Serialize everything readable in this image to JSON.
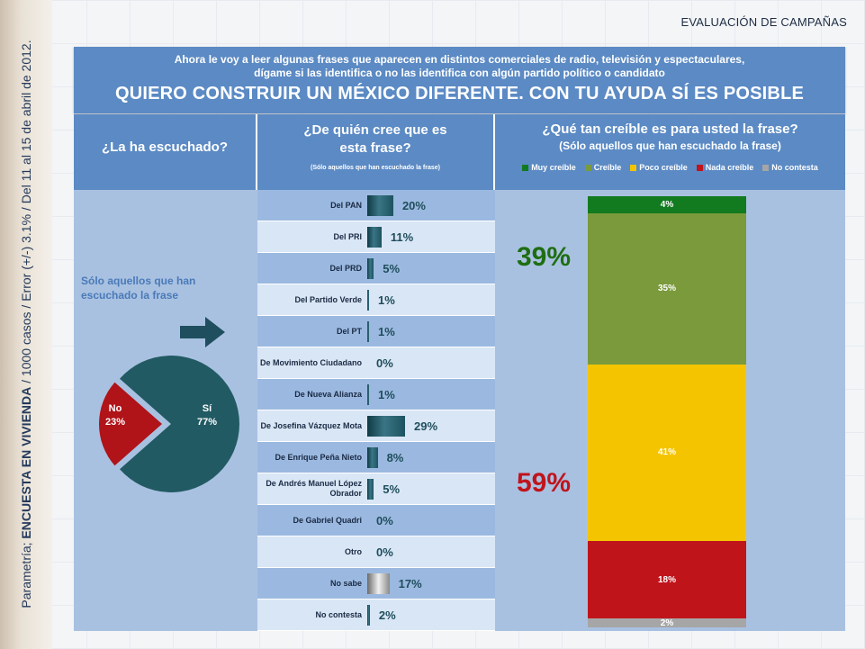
{
  "side_text": {
    "prefix": "Parametría; ",
    "bold": "ENCUESTA EN VIVIENDA",
    "rest": " / 1000 casos / Error (+/-) 3.1% / Del 11 al 15 de abril de 2012."
  },
  "top_label": "EVALUACIÓN DE CAMPAÑAS",
  "header": {
    "q1": "Ahora le voy a leer algunas frases que aparecen en distintos comerciales de radio, televisión y espectaculares,",
    "q2": "dígame si las identifica o no las identifica con algún partido político o candidato",
    "title": "QUIERO CONSTRUIR UN MÉXICO DIFERENTE. CON TU AYUDA SÍ ES POSIBLE"
  },
  "col1": {
    "title": "¿La ha escuchado?",
    "note": "Sólo aquellos que han escuchado la frase"
  },
  "col2": {
    "title": "¿De quién cree que es esta frase?",
    "subtitle": "(Sólo aquellos que han escuchado la frase)"
  },
  "col3": {
    "title": "¿Qué tan creíble es para usted la frase?",
    "subtitle": "(Sólo aquellos que han escuchado la frase)"
  },
  "colors": {
    "muy_creible": "#127a1f",
    "creible": "#7a9a3c",
    "poco_creible": "#f5c400",
    "nada_creible": "#c0141b",
    "no_contesta": "#a6a6a6",
    "pie_si": "#215a63",
    "pie_no": "#b01318",
    "big_green": "#1e6e12",
    "big_red": "#c0141b"
  },
  "chart_data": [
    {
      "type": "pie",
      "slices": [
        {
          "label": "Sí",
          "value": 77,
          "display": "77%"
        },
        {
          "label": "No",
          "value": 23,
          "display": "23%"
        }
      ]
    },
    {
      "type": "bar",
      "orientation": "horizontal",
      "categories": [
        "Del PAN",
        "Del PRI",
        "Del PRD",
        "Del Partido Verde",
        "Del PT",
        "De Movimiento Ciudadano",
        "De Nueva Alianza",
        "De Josefina Vázquez Mota",
        "De Enrique Peña Nieto",
        "De Andrés Manuel López Obrador",
        "De Gabriel Quadri",
        "Otro",
        "No sabe",
        "No contesta"
      ],
      "values": [
        20,
        11,
        5,
        1,
        1,
        0,
        1,
        29,
        8,
        5,
        0,
        0,
        17,
        2
      ],
      "labels": [
        "20%",
        "11%",
        "5%",
        "1%",
        "1%",
        "0%",
        "1%",
        "29%",
        "8%",
        "5%",
        "0%",
        "0%",
        "17%",
        "2%"
      ]
    },
    {
      "type": "bar",
      "stacked": true,
      "legend": [
        "Muy creíble",
        "Creíble",
        "Poco creíble",
        "Nada creíble",
        "No contesta"
      ],
      "series": [
        {
          "name": "Muy creíble",
          "value": 4,
          "label": "4%"
        },
        {
          "name": "Creíble",
          "value": 35,
          "label": "35%"
        },
        {
          "name": "Poco creíble",
          "value": 41,
          "label": "41%"
        },
        {
          "name": "Nada creíble",
          "value": 18,
          "label": "18%"
        },
        {
          "name": "No contesta",
          "value": 2,
          "label": "2%"
        }
      ],
      "annotations": {
        "creible_total": "39%",
        "no_creible_total": "59%"
      }
    }
  ]
}
